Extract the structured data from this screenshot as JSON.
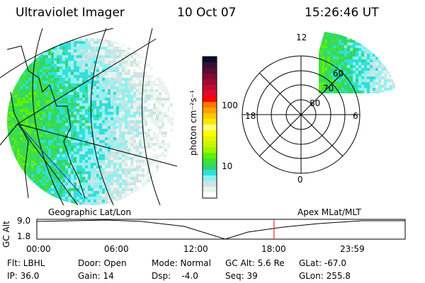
{
  "header": {
    "instrument": "Ultraviolet Imager",
    "date": "10 Oct 07",
    "time": "15:26:46 UT"
  },
  "colorbar": {
    "label": "photon cm⁻²s⁻¹",
    "ticks": [
      "100",
      "10"
    ],
    "colors": [
      "#0b0b2e",
      "#3a0d33",
      "#5c0a33",
      "#800a33",
      "#a00a33",
      "#c00a30",
      "#e00a30",
      "#ff0000",
      "#ff7800",
      "#ffa000",
      "#ffc800",
      "#ffe600",
      "#ffff80",
      "#ffff00",
      "#e6f500",
      "#c8f500",
      "#9ff500",
      "#60f000",
      "#40e040",
      "#30d868",
      "#30e0d8",
      "#90f0f0",
      "#d0e4e4",
      "#e8f4ee",
      "#ffffff"
    ]
  },
  "polar": {
    "mlt_labels": [
      "12",
      "18",
      "6",
      "0"
    ],
    "mlat_labels": [
      "60",
      "70",
      "80"
    ]
  },
  "maps": {
    "left_label": "Geographic Lat/Lon",
    "right_label": "Apex MLat/MLT"
  },
  "altitude_plot": {
    "ylabel": "GC Alt",
    "yticks": [
      "9.0",
      "1.8"
    ],
    "xticks": [
      "00:00",
      "06:00",
      "12:00",
      "18:00",
      "23:59"
    ],
    "current_time_fraction": 0.644,
    "marker_color": "#ff0000"
  },
  "status": {
    "flt": "Flt: LBHL",
    "ip": "IP: 36.0",
    "door": "Door: Open",
    "gain": "Gain: 14",
    "mode": "Mode: Normal",
    "dsp": "Dsp:    -4.0",
    "gcalt": "GC Alt: 5.6 Re",
    "seq": "Seq: 39",
    "glat": "GLat: -67.0",
    "glon": "GLon: 255.8"
  }
}
